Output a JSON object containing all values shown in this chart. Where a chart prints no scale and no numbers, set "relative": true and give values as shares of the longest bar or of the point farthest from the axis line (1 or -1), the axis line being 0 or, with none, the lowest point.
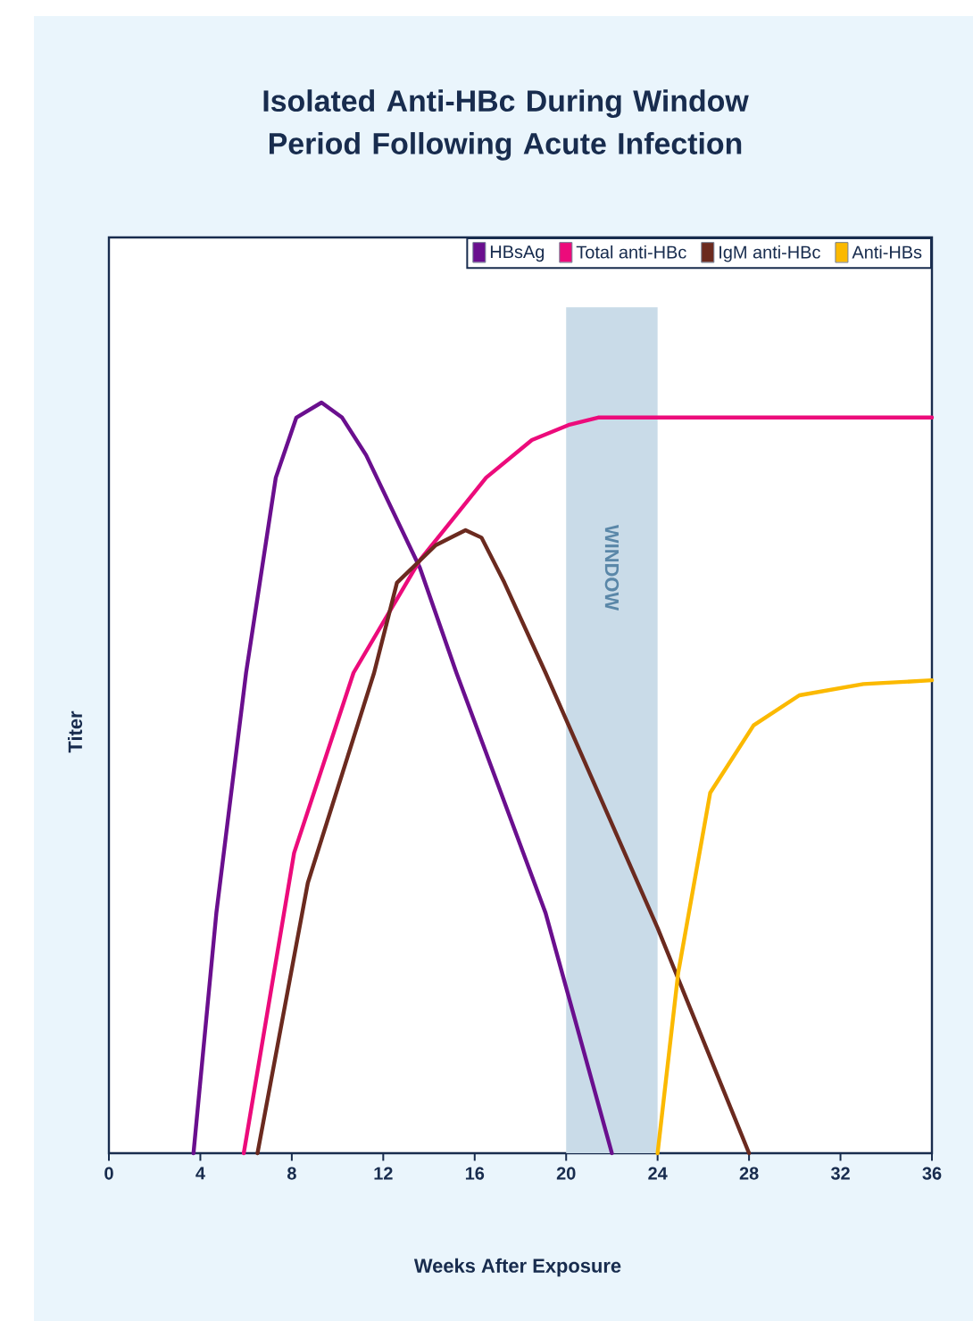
{
  "chart_data": {
    "type": "line",
    "title": "Isolated Anti-HBc During Window Period Following Acute Infection",
    "xlabel": "Weeks After Exposure",
    "ylabel": "Titer",
    "relative": true,
    "xlim": [
      0,
      36
    ],
    "xticks": [
      0,
      4,
      8,
      12,
      16,
      20,
      24,
      28,
      32,
      36
    ],
    "legend": "top right",
    "grid": false,
    "marker": "none",
    "line_style": "solid",
    "bands": [
      {
        "axis": "x",
        "from": 20,
        "to": 24,
        "label": "WINDOW",
        "color": "#c9dbe8"
      }
    ],
    "series": [
      {
        "name": "HBsAg",
        "color": "#6a0f8e",
        "x": [
          3.7,
          4.7,
          6.0,
          6.6,
          7.3,
          8.2,
          9.3,
          10.2,
          11.25,
          13.6,
          15.2,
          19.1,
          22.0
        ],
        "values": [
          0,
          0.32,
          0.64,
          0.76,
          0.9,
          0.98,
          1,
          0.98,
          0.93,
          0.78,
          0.64,
          0.32,
          0
        ]
      },
      {
        "name": "Total anti-HBc",
        "color": "#ec0b7b",
        "x": [
          5.9,
          8.1,
          10.7,
          13.6,
          16.5,
          18.5,
          20.1,
          21.4,
          36
        ],
        "values": [
          0,
          0.4,
          0.64,
          0.79,
          0.9,
          0.95,
          0.97,
          0.98,
          0.98
        ]
      },
      {
        "name": "IgM anti-HBc",
        "color": "#6b2a1f",
        "x": [
          6.5,
          8.7,
          11.6,
          12.6,
          14.3,
          15.6,
          16.3,
          17.3,
          19.1,
          24,
          28.0
        ],
        "values": [
          0,
          0.36,
          0.64,
          0.76,
          0.81,
          0.83,
          0.82,
          0.76,
          0.64,
          0.3,
          0
        ]
      },
      {
        "name": "Anti-HBs",
        "color": "#fbb900",
        "x": [
          24.0,
          24.9,
          26.3,
          28.2,
          30.2,
          33,
          36
        ],
        "values": [
          0,
          0.24,
          0.48,
          0.57,
          0.61,
          0.625,
          0.63
        ]
      }
    ]
  }
}
